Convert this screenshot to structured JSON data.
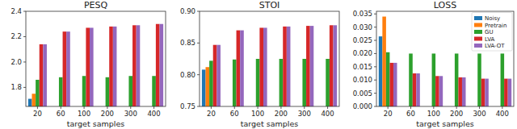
{
  "chart_data": [
    {
      "type": "bar",
      "title": "PESQ",
      "x_label": "target samples",
      "categories": [
        "20",
        "60",
        "100",
        "200",
        "300",
        "400"
      ],
      "series": [
        {
          "name": "Noisy",
          "color": "#1f77b4",
          "values": [
            1.71,
            null,
            null,
            null,
            null,
            null
          ]
        },
        {
          "name": "Pretrain",
          "color": "#ff7f0e",
          "values": [
            1.75,
            null,
            null,
            null,
            null,
            null
          ]
        },
        {
          "name": "GU",
          "color": "#2ca02c",
          "values": [
            1.86,
            1.88,
            1.89,
            1.88,
            1.89,
            1.89
          ]
        },
        {
          "name": "LVA",
          "color": "#d62728",
          "values": [
            2.14,
            2.24,
            2.27,
            2.28,
            2.29,
            2.3
          ]
        },
        {
          "name": "LVA-OT",
          "color": "#9467bd",
          "values": [
            2.14,
            2.24,
            2.27,
            2.28,
            2.29,
            2.3
          ]
        }
      ],
      "ylim": [
        1.65,
        2.4
      ],
      "yticks": [
        1.8,
        {
          "value": 2.0,
          "label": "2.0"
        },
        2.2,
        2.4
      ]
    },
    {
      "type": "bar",
      "title": "STOI",
      "x_label": "target samples",
      "categories": [
        "20",
        "60",
        "100",
        "200",
        "300",
        "400"
      ],
      "series": [
        {
          "name": "Noisy",
          "color": "#1f77b4",
          "values": [
            0.808,
            null,
            null,
            null,
            null,
            null
          ]
        },
        {
          "name": "Pretrain",
          "color": "#ff7f0e",
          "values": [
            0.812,
            null,
            null,
            null,
            null,
            null
          ]
        },
        {
          "name": "GU",
          "color": "#2ca02c",
          "values": [
            0.822,
            0.824,
            0.825,
            0.825,
            0.825,
            0.825
          ]
        },
        {
          "name": "LVA",
          "color": "#d62728",
          "values": [
            0.847,
            0.87,
            0.874,
            0.876,
            0.877,
            0.878
          ]
        },
        {
          "name": "LVA-OT",
          "color": "#9467bd",
          "values": [
            0.847,
            0.87,
            0.874,
            0.876,
            0.877,
            0.878
          ]
        }
      ],
      "ylim": [
        0.75,
        0.9
      ],
      "yticks": [
        0.75,
        {
          "value": 0.8,
          "label": "0.80"
        },
        0.85,
        {
          "value": 0.9,
          "label": "0.90"
        }
      ]
    },
    {
      "type": "bar",
      "title": "LOSS",
      "x_label": "target samples",
      "categories": [
        "20",
        "60",
        "100",
        "200",
        "300",
        "400"
      ],
      "series": [
        {
          "name": "Noisy",
          "color": "#1f77b4",
          "values": [
            0.0265,
            null,
            null,
            null,
            null,
            null
          ]
        },
        {
          "name": "Pretrain",
          "color": "#ff7f0e",
          "values": [
            0.034,
            null,
            null,
            null,
            null,
            null
          ]
        },
        {
          "name": "GU",
          "color": "#2ca02c",
          "values": [
            0.0205,
            0.02,
            0.02,
            0.02,
            0.02,
            0.02
          ]
        },
        {
          "name": "LVA",
          "color": "#d62728",
          "values": [
            0.0165,
            0.0125,
            0.0115,
            0.011,
            0.0105,
            0.0105
          ]
        },
        {
          "name": "LVA-OT",
          "color": "#9467bd",
          "values": [
            0.0165,
            0.0125,
            0.0115,
            0.011,
            0.0105,
            0.0105
          ]
        }
      ],
      "ylim": [
        0,
        0.036
      ],
      "yticks": [
        {
          "value": 0,
          "label": "0.000"
        },
        0.005,
        {
          "value": 0.01,
          "label": "0.010"
        },
        0.015,
        {
          "value": 0.02,
          "label": "0.020"
        },
        0.025,
        {
          "value": 0.03,
          "label": "0.030"
        },
        0.035
      ],
      "legend": "upper right"
    }
  ]
}
